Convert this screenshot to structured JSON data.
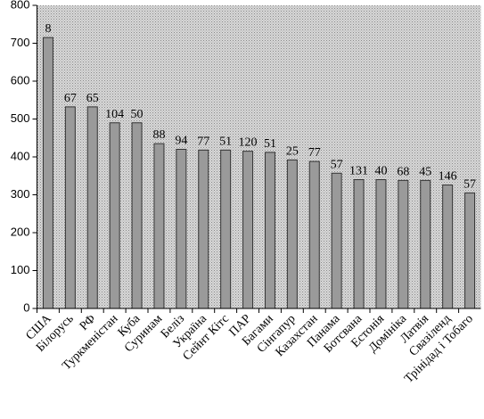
{
  "chart_data": {
    "type": "bar",
    "categories": [
      "США",
      "Білорусь",
      "РФ",
      "Туркменістан",
      "Куба",
      "Суринам",
      "Беліз",
      "Україна",
      "Сейнт Кітс",
      "ПАР",
      "Багами",
      "Сінгапур",
      "Казахстан",
      "Панама",
      "Ботсвана",
      "Естонія",
      "Домініка",
      "Латвія",
      "Свазіленд",
      "Трінідад і Тобаго"
    ],
    "values": [
      715,
      532,
      532,
      490,
      490,
      435,
      420,
      418,
      418,
      415,
      412,
      392,
      388,
      357,
      340,
      340,
      338,
      338,
      326,
      305
    ],
    "rank_labels": [
      8,
      67,
      65,
      104,
      50,
      88,
      94,
      77,
      51,
      120,
      51,
      25,
      77,
      57,
      131,
      40,
      68,
      45,
      146,
      57
    ],
    "color": "#9a9a9a",
    "ylim": [
      0,
      800
    ],
    "yticks": [
      0,
      100,
      200,
      300,
      400,
      500,
      600,
      700,
      800
    ],
    "grid": false
  }
}
